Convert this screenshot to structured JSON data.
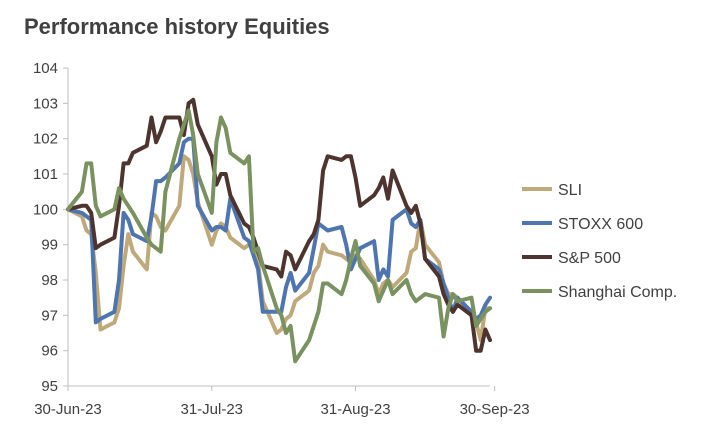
{
  "chart_data": {
    "type": "line",
    "title": "Performance history Equities",
    "xlabel": "",
    "ylabel": "",
    "ylim": [
      95,
      104
    ],
    "yticks": [
      95,
      96,
      97,
      98,
      99,
      100,
      101,
      102,
      103,
      104
    ],
    "xticks": [
      "30-Jun-23",
      "31-Jul-23",
      "31-Aug-23",
      "30-Sep-23"
    ],
    "grid": false,
    "legend_position": "right",
    "x": [
      "2023-06-30",
      "2023-07-03",
      "2023-07-04",
      "2023-07-05",
      "2023-07-06",
      "2023-07-07",
      "2023-07-10",
      "2023-07-11",
      "2023-07-12",
      "2023-07-13",
      "2023-07-14",
      "2023-07-17",
      "2023-07-18",
      "2023-07-19",
      "2023-07-20",
      "2023-07-21",
      "2023-07-24",
      "2023-07-25",
      "2023-07-26",
      "2023-07-27",
      "2023-07-28",
      "2023-07-31",
      "2023-08-01",
      "2023-08-02",
      "2023-08-03",
      "2023-08-04",
      "2023-08-07",
      "2023-08-08",
      "2023-08-09",
      "2023-08-10",
      "2023-08-11",
      "2023-08-14",
      "2023-08-15",
      "2023-08-16",
      "2023-08-17",
      "2023-08-18",
      "2023-08-21",
      "2023-08-22",
      "2023-08-23",
      "2023-08-24",
      "2023-08-25",
      "2023-08-28",
      "2023-08-29",
      "2023-08-30",
      "2023-08-31",
      "2023-09-01",
      "2023-09-04",
      "2023-09-05",
      "2023-09-06",
      "2023-09-07",
      "2023-09-08",
      "2023-09-11",
      "2023-09-12",
      "2023-09-13",
      "2023-09-14",
      "2023-09-15",
      "2023-09-18",
      "2023-09-19",
      "2023-09-20",
      "2023-09-21",
      "2023-09-22",
      "2023-09-25",
      "2023-09-26",
      "2023-09-27",
      "2023-09-28",
      "2023-09-29"
    ],
    "series": [
      {
        "name": "SLI",
        "color": "#BFA97A",
        "values": [
          100.0,
          99.8,
          99.4,
          99.3,
          98.2,
          96.6,
          96.8,
          97.2,
          98.4,
          99.3,
          98.8,
          98.3,
          99.9,
          99.8,
          99.5,
          99.4,
          100.1,
          101.5,
          101.4,
          101.0,
          100.2,
          99.0,
          99.4,
          99.6,
          99.5,
          99.2,
          98.9,
          99.0,
          99.0,
          98.5,
          97.4,
          96.5,
          96.6,
          96.9,
          97.0,
          97.4,
          97.7,
          98.2,
          98.4,
          99.0,
          98.8,
          98.7,
          98.6,
          98.5,
          98.7,
          98.6,
          98.0,
          97.6,
          97.9,
          98.0,
          97.8,
          98.2,
          98.8,
          98.9,
          99.7,
          99.0,
          98.5,
          97.9,
          97.6,
          97.6,
          97.5,
          97.0,
          96.8,
          96.3,
          97.2,
          97.2
        ],
        "xi": [
          0,
          1,
          2,
          3,
          4,
          5,
          6,
          7,
          8,
          9,
          10,
          11,
          12,
          13,
          14,
          15,
          16,
          17,
          18,
          19,
          20,
          21,
          22,
          23,
          24,
          25,
          26,
          27,
          28,
          29,
          30,
          31,
          32,
          33,
          34,
          35,
          36,
          37,
          38,
          39,
          40,
          41,
          42,
          43,
          44,
          45,
          46,
          47,
          48,
          49,
          50,
          51,
          52,
          53,
          54,
          55,
          56,
          57,
          58,
          59,
          60,
          61,
          62,
          63,
          64,
          65
        ]
      },
      {
        "name": "STOXX 600",
        "color": "#4F75B0",
        "values": [
          100.0,
          99.9,
          99.8,
          99.7,
          96.8,
          96.9,
          97.1,
          98.0,
          99.9,
          99.7,
          99.3,
          99.1,
          99.8,
          100.8,
          100.8,
          100.9,
          101.3,
          101.9,
          102.0,
          102.0,
          100.1,
          99.4,
          99.5,
          99.5,
          99.4,
          100.3,
          99.2,
          99.1,
          98.7,
          98.3,
          97.1,
          97.1,
          97.1,
          97.8,
          98.2,
          97.7,
          98.2,
          98.9,
          99.6,
          99.5,
          99.4,
          99.5,
          99.0,
          98.3,
          98.6,
          98.9,
          99.1,
          98.0,
          98.3,
          98.1,
          99.7,
          100.0,
          99.6,
          99.5,
          99.7,
          98.6,
          98.3,
          97.9,
          97.5,
          97.1,
          97.5,
          97.1,
          96.9,
          97.0,
          97.3,
          97.5
        ],
        "xi": [
          0,
          1,
          2,
          3,
          4,
          5,
          6,
          7,
          8,
          9,
          10,
          11,
          12,
          13,
          14,
          15,
          16,
          17,
          18,
          19,
          20,
          21,
          22,
          23,
          24,
          25,
          26,
          27,
          28,
          29,
          30,
          31,
          32,
          33,
          34,
          35,
          36,
          37,
          38,
          39,
          40,
          41,
          42,
          43,
          44,
          45,
          46,
          47,
          48,
          49,
          50,
          51,
          52,
          53,
          54,
          55,
          56,
          57,
          58,
          59,
          60,
          61,
          62,
          63,
          64,
          65
        ]
      },
      {
        "name": "S&P 500",
        "color": "#4E342E",
        "values": [
          100.0,
          100.1,
          100.1,
          99.9,
          98.9,
          99.0,
          99.2,
          100.1,
          101.3,
          101.3,
          101.6,
          101.8,
          102.6,
          101.9,
          102.2,
          102.6,
          102.6,
          102.1,
          103.0,
          103.1,
          102.4,
          101.5,
          100.7,
          101.0,
          101.0,
          100.4,
          99.6,
          99.5,
          99.2,
          98.8,
          98.4,
          98.3,
          98.1,
          98.8,
          98.7,
          98.3,
          99.1,
          99.3,
          99.7,
          101.1,
          101.5,
          101.4,
          101.5,
          101.5,
          100.9,
          100.1,
          100.4,
          100.6,
          100.9,
          100.3,
          101.1,
          100.1,
          99.9,
          100.1,
          99.6,
          98.6,
          98.1,
          97.6,
          97.3,
          97.1,
          97.3,
          97.0,
          96.0,
          96.0,
          96.6,
          96.3
        ],
        "xi": [
          0,
          1,
          2,
          3,
          4,
          5,
          6,
          7,
          8,
          9,
          10,
          11,
          12,
          13,
          14,
          15,
          16,
          17,
          18,
          19,
          20,
          21,
          22,
          23,
          24,
          25,
          26,
          27,
          28,
          29,
          30,
          31,
          32,
          33,
          34,
          35,
          36,
          37,
          38,
          39,
          40,
          41,
          42,
          43,
          44,
          45,
          46,
          47,
          48,
          49,
          50,
          51,
          52,
          53,
          54,
          55,
          56,
          57,
          58,
          59,
          60,
          61,
          62,
          63,
          64,
          65
        ]
      },
      {
        "name": "Shanghai Comp.",
        "color": "#7A9160",
        "values": [
          100.0,
          100.5,
          101.3,
          101.3,
          100.1,
          99.8,
          100.0,
          100.6,
          100.3,
          100.1,
          99.9,
          99.2,
          99.0,
          98.9,
          98.8,
          100.5,
          102.0,
          102.4,
          102.8,
          102.1,
          101.0,
          99.9,
          101.9,
          102.6,
          102.3,
          101.6,
          101.3,
          101.5,
          98.8,
          98.9,
          98.4,
          97.2,
          97.0,
          96.5,
          96.7,
          95.7,
          96.3,
          96.7,
          97.1,
          97.9,
          97.9,
          97.6,
          98.0,
          98.6,
          99.1,
          98.4,
          97.9,
          97.4,
          97.7,
          98.0,
          97.6,
          98.0,
          97.6,
          97.4,
          97.5,
          97.6,
          97.5,
          96.4,
          97.2,
          97.6,
          97.4,
          97.5,
          96.7,
          96.9,
          97.1,
          97.2
        ],
        "xi": [
          0,
          1,
          2,
          3,
          4,
          5,
          6,
          7,
          8,
          9,
          10,
          11,
          12,
          13,
          14,
          15,
          16,
          17,
          18,
          19,
          20,
          21,
          22,
          23,
          24,
          25,
          26,
          27,
          28,
          29,
          30,
          31,
          32,
          33,
          34,
          35,
          36,
          37,
          38,
          39,
          40,
          41,
          42,
          43,
          44,
          45,
          46,
          47,
          48,
          49,
          50,
          51,
          52,
          53,
          54,
          55,
          56,
          57,
          58,
          59,
          60,
          61,
          62,
          63,
          64,
          65
        ]
      }
    ]
  }
}
